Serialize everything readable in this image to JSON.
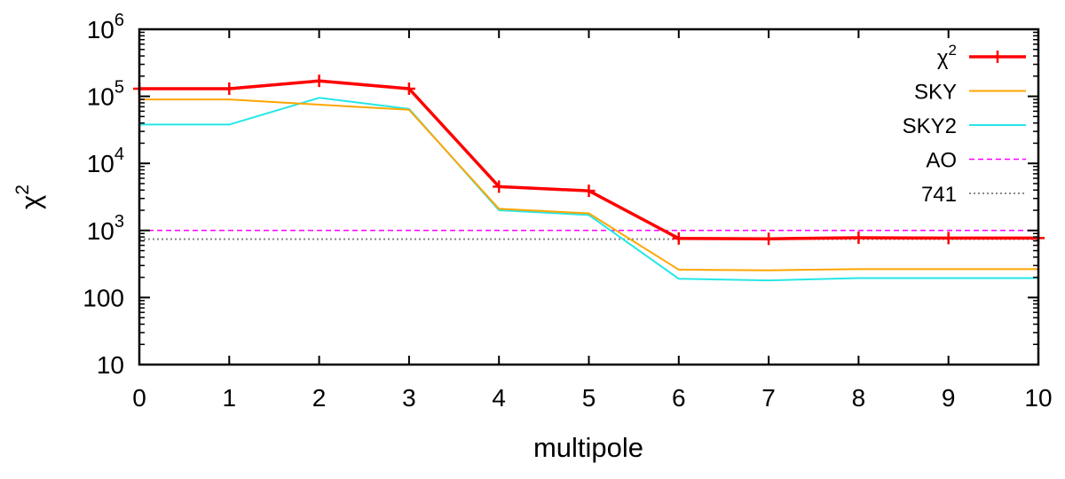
{
  "chart_data": {
    "type": "line",
    "xlabel": "multipole",
    "ylabel": "χ",
    "ylabel_superscript": "2",
    "xlim": [
      0,
      10
    ],
    "ylim": [
      10,
      1000000
    ],
    "yscale": "log",
    "grid": false,
    "legend_position": "top-right",
    "x": [
      0,
      1,
      2,
      3,
      4,
      5,
      6,
      7,
      8,
      9,
      10
    ],
    "x_ticks": [
      "0",
      "1",
      "2",
      "3",
      "4",
      "5",
      "6",
      "7",
      "8",
      "9",
      "10"
    ],
    "y_ticks": [
      {
        "value": 10,
        "base": "10",
        "exp": ""
      },
      {
        "value": 100,
        "base": "100",
        "exp": ""
      },
      {
        "value": 1000,
        "base": "10",
        "exp": "3"
      },
      {
        "value": 10000,
        "base": "10",
        "exp": "4"
      },
      {
        "value": 100000,
        "base": "10",
        "exp": "5"
      },
      {
        "value": 1000000,
        "base": "10",
        "exp": "6"
      }
    ],
    "series": [
      {
        "name": "χ",
        "name_superscript": "2",
        "color": "#ff0000",
        "style": "solid-thick",
        "markers": "plus",
        "values": [
          130000,
          130000,
          170000,
          130000,
          4500,
          3900,
          760,
          750,
          780,
          770,
          770
        ]
      },
      {
        "name": "SKY",
        "color": "#ffa500",
        "style": "solid",
        "values": [
          90000,
          90000,
          75000,
          63000,
          2100,
          1800,
          260,
          255,
          265,
          265,
          265
        ]
      },
      {
        "name": "SKY2",
        "color": "#26e6e6",
        "style": "solid",
        "values": [
          38000,
          38000,
          95000,
          65000,
          2000,
          1700,
          190,
          180,
          195,
          195,
          195
        ]
      },
      {
        "name": "AO",
        "color": "#ff00ff",
        "style": "dashed",
        "values": [
          1000,
          1000,
          1000,
          1000,
          1000,
          1000,
          1000,
          1000,
          1000,
          1000,
          1000
        ]
      },
      {
        "name": "741",
        "color": "#888888",
        "style": "dotted",
        "values": [
          741,
          741,
          741,
          741,
          741,
          741,
          741,
          741,
          741,
          741,
          741
        ]
      }
    ]
  }
}
